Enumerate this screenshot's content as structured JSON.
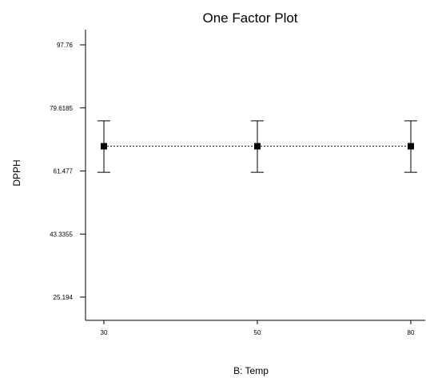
{
  "chart_data": {
    "type": "scatter",
    "title": "One Factor Plot",
    "xlabel": "B: Temp",
    "ylabel": "DPPH",
    "x_categories": [
      "30",
      "50",
      "80"
    ],
    "y_ticks": [
      "25.194",
      "43.3355",
      "61.477",
      "79.6185",
      "97.76"
    ],
    "ylim": [
      25.194,
      97.76
    ],
    "series": [
      {
        "values": [
          68.6,
          68.6,
          68.6
        ],
        "error_upper": [
          75.9,
          75.9,
          75.9
        ],
        "error_lower": [
          61.1,
          61.1,
          61.1
        ]
      }
    ],
    "connector": "dashed",
    "grid": false
  }
}
